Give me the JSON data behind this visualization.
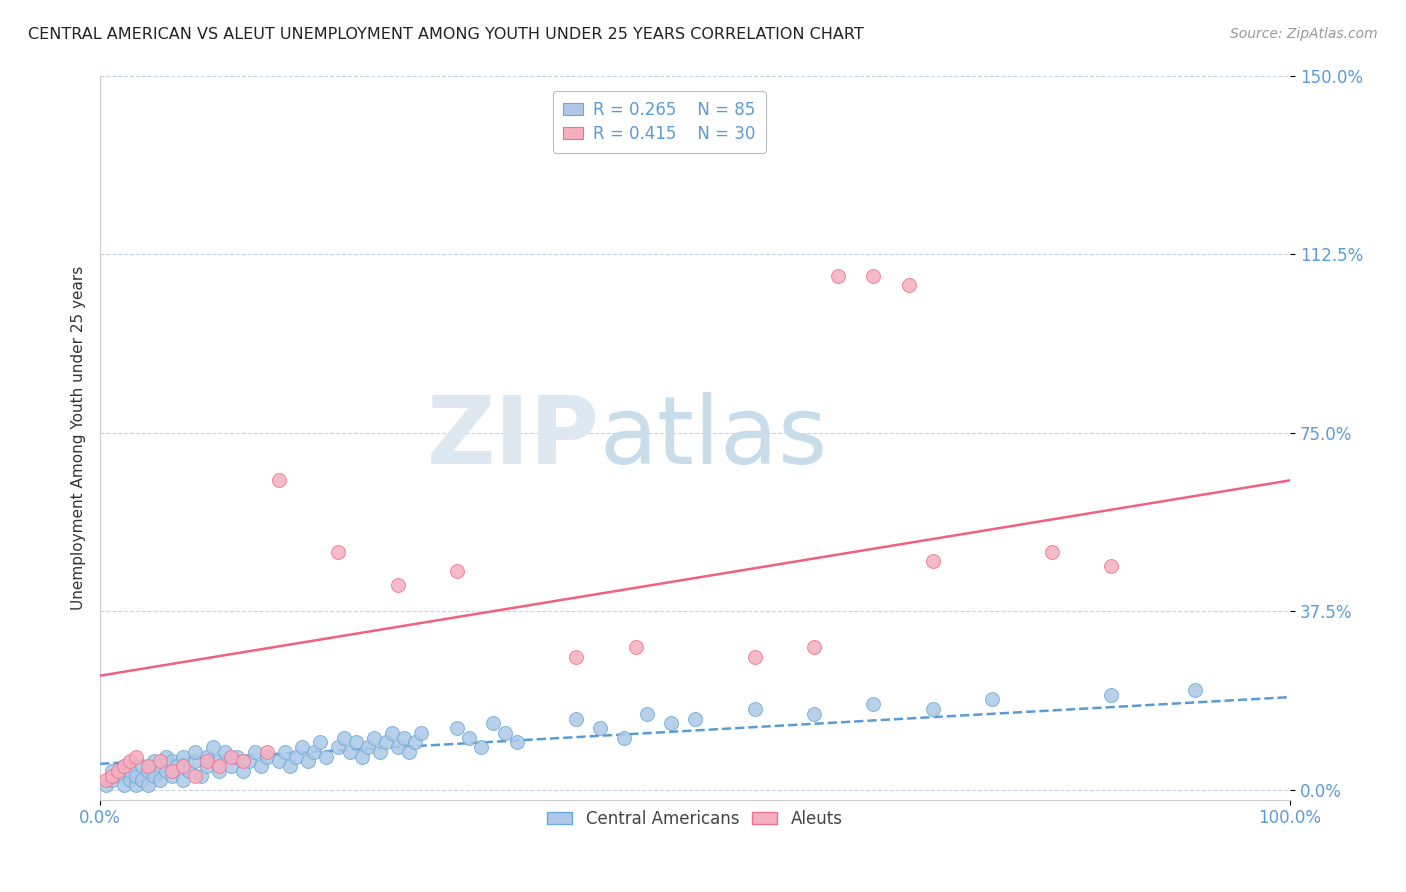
{
  "title": "CENTRAL AMERICAN VS ALEUT UNEMPLOYMENT AMONG YOUTH UNDER 25 YEARS CORRELATION CHART",
  "source": "Source: ZipAtlas.com",
  "ylabel": "Unemployment Among Youth under 25 years",
  "xlim": [
    0.0,
    1.0
  ],
  "ylim": [
    -0.02,
    1.5
  ],
  "yticks": [
    0.0,
    0.375,
    0.75,
    1.125,
    1.5
  ],
  "ytick_labels": [
    "0.0%",
    "37.5%",
    "75.0%",
    "112.5%",
    "150.0%"
  ],
  "xtick_labels": [
    "0.0%",
    "100.0%"
  ],
  "blue_label": "Central Americans",
  "pink_label": "Aleuts",
  "blue_R": "0.265",
  "blue_N": "85",
  "pink_R": "0.415",
  "pink_N": "30",
  "blue_color": "#adc8e8",
  "pink_color": "#f5b0c0",
  "blue_edge_color": "#6aaad4",
  "pink_edge_color": "#f07090",
  "blue_line_color": "#5b9bd5",
  "pink_line_color": "#f06080",
  "tick_color": "#5b9bd5",
  "blue_scatter_x": [
    0.005,
    0.01,
    0.01,
    0.015,
    0.02,
    0.02,
    0.025,
    0.025,
    0.03,
    0.03,
    0.035,
    0.035,
    0.04,
    0.04,
    0.045,
    0.045,
    0.05,
    0.05,
    0.055,
    0.055,
    0.06,
    0.06,
    0.065,
    0.07,
    0.07,
    0.075,
    0.08,
    0.08,
    0.085,
    0.09,
    0.09,
    0.095,
    0.1,
    0.1,
    0.105,
    0.11,
    0.115,
    0.12,
    0.125,
    0.13,
    0.135,
    0.14,
    0.15,
    0.155,
    0.16,
    0.165,
    0.17,
    0.175,
    0.18,
    0.185,
    0.19,
    0.2,
    0.205,
    0.21,
    0.215,
    0.22,
    0.225,
    0.23,
    0.235,
    0.24,
    0.245,
    0.25,
    0.255,
    0.26,
    0.265,
    0.27,
    0.3,
    0.31,
    0.32,
    0.33,
    0.34,
    0.35,
    0.4,
    0.42,
    0.44,
    0.46,
    0.48,
    0.5,
    0.55,
    0.6,
    0.65,
    0.7,
    0.75,
    0.85,
    0.92
  ],
  "blue_scatter_y": [
    0.01,
    0.02,
    0.04,
    0.03,
    0.01,
    0.05,
    0.02,
    0.04,
    0.01,
    0.03,
    0.05,
    0.02,
    0.04,
    0.01,
    0.06,
    0.03,
    0.05,
    0.02,
    0.07,
    0.04,
    0.06,
    0.03,
    0.05,
    0.07,
    0.02,
    0.04,
    0.06,
    0.08,
    0.03,
    0.05,
    0.07,
    0.09,
    0.04,
    0.06,
    0.08,
    0.05,
    0.07,
    0.04,
    0.06,
    0.08,
    0.05,
    0.07,
    0.06,
    0.08,
    0.05,
    0.07,
    0.09,
    0.06,
    0.08,
    0.1,
    0.07,
    0.09,
    0.11,
    0.08,
    0.1,
    0.07,
    0.09,
    0.11,
    0.08,
    0.1,
    0.12,
    0.09,
    0.11,
    0.08,
    0.1,
    0.12,
    0.13,
    0.11,
    0.09,
    0.14,
    0.12,
    0.1,
    0.15,
    0.13,
    0.11,
    0.16,
    0.14,
    0.15,
    0.17,
    0.16,
    0.18,
    0.17,
    0.19,
    0.2,
    0.21
  ],
  "pink_scatter_x": [
    0.005,
    0.01,
    0.015,
    0.02,
    0.025,
    0.03,
    0.04,
    0.05,
    0.06,
    0.07,
    0.08,
    0.09,
    0.1,
    0.11,
    0.12,
    0.14,
    0.15,
    0.2,
    0.25,
    0.3,
    0.4,
    0.45,
    0.55,
    0.6,
    0.62,
    0.65,
    0.68,
    0.7,
    0.8,
    0.85
  ],
  "pink_scatter_y": [
    0.02,
    0.03,
    0.04,
    0.05,
    0.06,
    0.07,
    0.05,
    0.06,
    0.04,
    0.05,
    0.03,
    0.06,
    0.05,
    0.07,
    0.06,
    0.08,
    0.65,
    0.5,
    0.43,
    0.46,
    0.28,
    0.3,
    0.28,
    0.3,
    1.08,
    1.08,
    1.06,
    0.48,
    0.5,
    0.47
  ],
  "blue_trend_start": 0.055,
  "blue_trend_end": 0.195,
  "pink_trend_start": 0.24,
  "pink_trend_end": 0.65
}
